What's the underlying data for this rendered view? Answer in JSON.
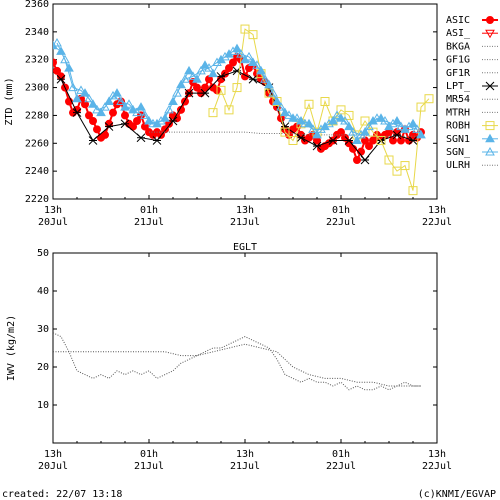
{
  "footer": {
    "created": "created: 22/07 13:18",
    "credit": "(c)KNMI/EGVAP"
  },
  "chart_data": [
    {
      "type": "line",
      "title": "",
      "xlabel": "",
      "ylabel": "ZTD (mm)",
      "xlim": [
        0,
        48
      ],
      "ylim": [
        2220,
        2360
      ],
      "yticks": [
        2220,
        2240,
        2260,
        2280,
        2300,
        2320,
        2340,
        2360
      ],
      "xticks": [
        {
          "x": 0,
          "line1": "13h",
          "line2": "20Jul"
        },
        {
          "x": 12,
          "line1": "01h",
          "line2": "21Jul"
        },
        {
          "x": 24,
          "line1": "13h",
          "line2": "21Jul"
        },
        {
          "x": 36,
          "line1": "01h",
          "line2": "22Jul"
        },
        {
          "x": 48,
          "line1": "13h",
          "line2": "22Jul"
        }
      ],
      "legend": "right",
      "series": [
        {
          "name": "ASIC",
          "color": "#ff0000",
          "marker": "filled-circle",
          "x": [
            0,
            0.5,
            1,
            1.5,
            2,
            2.5,
            3,
            3.5,
            4,
            4.5,
            5,
            5.5,
            6,
            6.5,
            7,
            7.5,
            8,
            8.5,
            9,
            9.5,
            10,
            10.5,
            11,
            11.5,
            12,
            12.5,
            13,
            13.5,
            14,
            14.5,
            15,
            15.5,
            16,
            16.5,
            17,
            17.5,
            18,
            18.5,
            19,
            19.5,
            20,
            20.5,
            21,
            21.5,
            22,
            22.5,
            23,
            23.5,
            24,
            24.5,
            25,
            25.5,
            26,
            26.5,
            27,
            27.5,
            28,
            28.5,
            29,
            29.5,
            30,
            30.5,
            31,
            31.5,
            32,
            32.5,
            33,
            33.5,
            34,
            34.5,
            35,
            35.5,
            36,
            36.5,
            37,
            37.5,
            38,
            38.5,
            39,
            39.5,
            40,
            40.5,
            41,
            41.5,
            42,
            42.5,
            43,
            43.5,
            44,
            44.5,
            45,
            45.5,
            46
          ],
          "y": [
            2318,
            2312,
            2308,
            2300,
            2290,
            2282,
            2284,
            2292,
            2288,
            2280,
            2276,
            2270,
            2264,
            2266,
            2274,
            2282,
            2288,
            2290,
            2280,
            2274,
            2272,
            2276,
            2280,
            2272,
            2268,
            2266,
            2268,
            2266,
            2270,
            2274,
            2280,
            2278,
            2284,
            2290,
            2296,
            2304,
            2300,
            2296,
            2300,
            2306,
            2300,
            2298,
            2306,
            2310,
            2314,
            2318,
            2322,
            2320,
            2308,
            2314,
            2316,
            2310,
            2306,
            2304,
            2296,
            2290,
            2286,
            2278,
            2270,
            2266,
            2270,
            2272,
            2266,
            2262,
            2264,
            2266,
            2262,
            2256,
            2258,
            2260,
            2262,
            2266,
            2268,
            2264,
            2260,
            2256,
            2248,
            2254,
            2262,
            2258,
            2262,
            2266,
            2264,
            2266,
            2268,
            2262,
            2268,
            2262,
            2270,
            2262,
            2266,
            2264,
            2268
          ]
        },
        {
          "name": "ASI_",
          "color": "#ff0000",
          "marker": "open-triangle-down",
          "x": [],
          "y": []
        },
        {
          "name": "BKGA",
          "color": "#777777",
          "marker": "dots",
          "x": [],
          "y": []
        },
        {
          "name": "GF1G",
          "color": "#777777",
          "marker": "dots",
          "x": [],
          "y": []
        },
        {
          "name": "GF1R",
          "color": "#777777",
          "marker": "dots",
          "x": [],
          "y": []
        },
        {
          "name": "LPT_",
          "color": "#000000",
          "marker": "asterisk",
          "x": [
            1,
            3,
            5,
            7,
            9,
            11,
            13,
            15,
            17,
            19,
            21,
            23,
            25,
            27,
            29,
            31,
            33,
            35,
            37,
            39,
            41,
            43,
            45
          ],
          "y": [
            2306,
            2282,
            2262,
            2272,
            2274,
            2264,
            2262,
            2276,
            2296,
            2296,
            2308,
            2312,
            2306,
            2300,
            2272,
            2264,
            2258,
            2262,
            2262,
            2248,
            2262,
            2266,
            2262
          ]
        },
        {
          "name": "MR54",
          "color": "#777777",
          "marker": "dots",
          "x": [],
          "y": []
        },
        {
          "name": "MTRH",
          "color": "#777777",
          "marker": "dots",
          "x": [
            12,
            14,
            16,
            18,
            20,
            22,
            24,
            26,
            28,
            30,
            32,
            34,
            36,
            38,
            40,
            42,
            44,
            46
          ],
          "y": [
            2268,
            2268,
            2268,
            2268,
            2268,
            2268,
            2268,
            2267,
            2267,
            2267,
            2266,
            2266,
            2266,
            2266,
            2265,
            2265,
            2265,
            2265
          ]
        },
        {
          "name": "ROBH",
          "color": "#e8d84a",
          "marker": "open-square",
          "x": [
            20,
            21,
            22,
            23,
            24,
            25,
            26,
            27,
            28,
            29,
            30,
            31,
            32,
            33,
            34,
            35,
            36,
            37,
            38,
            39,
            40,
            41,
            42,
            43,
            44,
            45,
            46,
            47
          ],
          "y": [
            2282,
            2298,
            2284,
            2300,
            2342,
            2338,
            2310,
            2296,
            2290,
            2268,
            2262,
            2274,
            2288,
            2268,
            2290,
            2276,
            2284,
            2280,
            2266,
            2276,
            2268,
            2262,
            2248,
            2240,
            2244,
            2226,
            2286,
            2292
          ]
        },
        {
          "name": "SGN1",
          "color": "#5ab4e8",
          "marker": "filled-triangle",
          "x": [
            0,
            1,
            2,
            3,
            4,
            5,
            6,
            7,
            8,
            9,
            10,
            11,
            12,
            13,
            14,
            15,
            16,
            17,
            18,
            19,
            20,
            21,
            22,
            23,
            24,
            25,
            26,
            27,
            28,
            29,
            30,
            31,
            32,
            33,
            34,
            35,
            36,
            37,
            38,
            39,
            40,
            41,
            42,
            43,
            44,
            45,
            46
          ],
          "y": [
            2330,
            2326,
            2314,
            2292,
            2296,
            2288,
            2282,
            2290,
            2296,
            2286,
            2284,
            2286,
            2276,
            2274,
            2278,
            2290,
            2302,
            2312,
            2306,
            2316,
            2310,
            2320,
            2324,
            2328,
            2320,
            2318,
            2312,
            2302,
            2290,
            2282,
            2278,
            2276,
            2274,
            2266,
            2272,
            2276,
            2278,
            2272,
            2262,
            2268,
            2276,
            2278,
            2272,
            2276,
            2270,
            2274,
            2266
          ]
        },
        {
          "name": "SGN_",
          "color": "#5ab4e8",
          "marker": "open-triangle",
          "x": [
            0.5,
            1.5,
            2.5,
            3.5,
            4.5,
            5.5,
            6.5,
            7.5,
            8.5,
            9.5,
            10.5,
            11.5,
            12.5,
            13.5,
            14.5,
            15.5,
            16.5,
            17.5,
            18.5,
            19.5,
            20.5,
            21.5,
            22.5,
            23.5,
            24.5,
            25.5,
            26.5,
            27.5,
            28.5,
            29.5,
            30.5,
            31.5,
            32.5,
            33.5,
            34.5,
            35.5,
            36.5,
            37.5,
            38.5,
            39.5,
            40.5,
            41.5,
            42.5,
            43.5,
            44.5,
            45.5
          ],
          "y": [
            2332,
            2320,
            2300,
            2298,
            2292,
            2284,
            2286,
            2294,
            2290,
            2288,
            2282,
            2280,
            2274,
            2276,
            2284,
            2296,
            2306,
            2308,
            2312,
            2314,
            2318,
            2322,
            2326,
            2324,
            2322,
            2316,
            2306,
            2296,
            2286,
            2280,
            2278,
            2274,
            2270,
            2270,
            2274,
            2280,
            2276,
            2268,
            2266,
            2272,
            2278,
            2276,
            2274,
            2272,
            2272,
            2270
          ]
        },
        {
          "name": "ULRH",
          "color": "#777777",
          "marker": "dots",
          "x": [],
          "y": []
        }
      ]
    },
    {
      "type": "line",
      "title": "EGLT",
      "xlabel": "",
      "ylabel": "IWV (kg/m2)",
      "xlim": [
        0,
        48
      ],
      "ylim": [
        0,
        50
      ],
      "yticks": [
        10,
        20,
        30,
        40,
        50
      ],
      "xticks": [
        {
          "x": 0,
          "line1": "13h",
          "line2": "20Jul"
        },
        {
          "x": 12,
          "line1": "01h",
          "line2": "21Jul"
        },
        {
          "x": 24,
          "line1": "13h",
          "line2": "21Jul"
        },
        {
          "x": 36,
          "line1": "01h",
          "line2": "22Jul"
        },
        {
          "x": 48,
          "line1": "13h",
          "line2": "22Jul"
        }
      ],
      "series": [
        {
          "name": "",
          "color": "#555555",
          "style": "dotted",
          "x": [
            0,
            1,
            2,
            3,
            4,
            5,
            6,
            7,
            8,
            9,
            10,
            11,
            12,
            13,
            14,
            15,
            16,
            17,
            18,
            19,
            20,
            21,
            22,
            23,
            24,
            25,
            26,
            27,
            28,
            29,
            30,
            31,
            32,
            33,
            34,
            35,
            36,
            37,
            38,
            39,
            40,
            41,
            42,
            43,
            44,
            45,
            46
          ],
          "y": [
            29,
            28,
            24,
            19,
            18,
            17,
            18,
            17,
            19,
            18,
            19,
            18,
            19,
            17,
            18,
            19,
            21,
            22,
            23,
            24,
            25,
            25,
            26,
            27,
            28,
            27,
            26,
            25,
            22,
            18,
            17,
            16,
            17,
            16,
            16,
            15,
            16,
            14,
            15,
            14,
            14,
            15,
            14,
            15,
            16,
            15,
            15
          ]
        },
        {
          "name": "",
          "color": "#555555",
          "style": "dotted",
          "x": [
            0,
            2,
            4,
            6,
            8,
            10,
            11,
            12,
            14,
            16,
            18,
            20,
            22,
            24,
            26,
            28,
            30,
            32,
            34,
            36,
            38,
            40,
            42,
            44,
            46
          ],
          "y": [
            24,
            24,
            24,
            24,
            24,
            24,
            24,
            24,
            24,
            23,
            23,
            24,
            25,
            26,
            25,
            24,
            20,
            18,
            17,
            17,
            16,
            16,
            15,
            15,
            15
          ]
        }
      ]
    }
  ]
}
